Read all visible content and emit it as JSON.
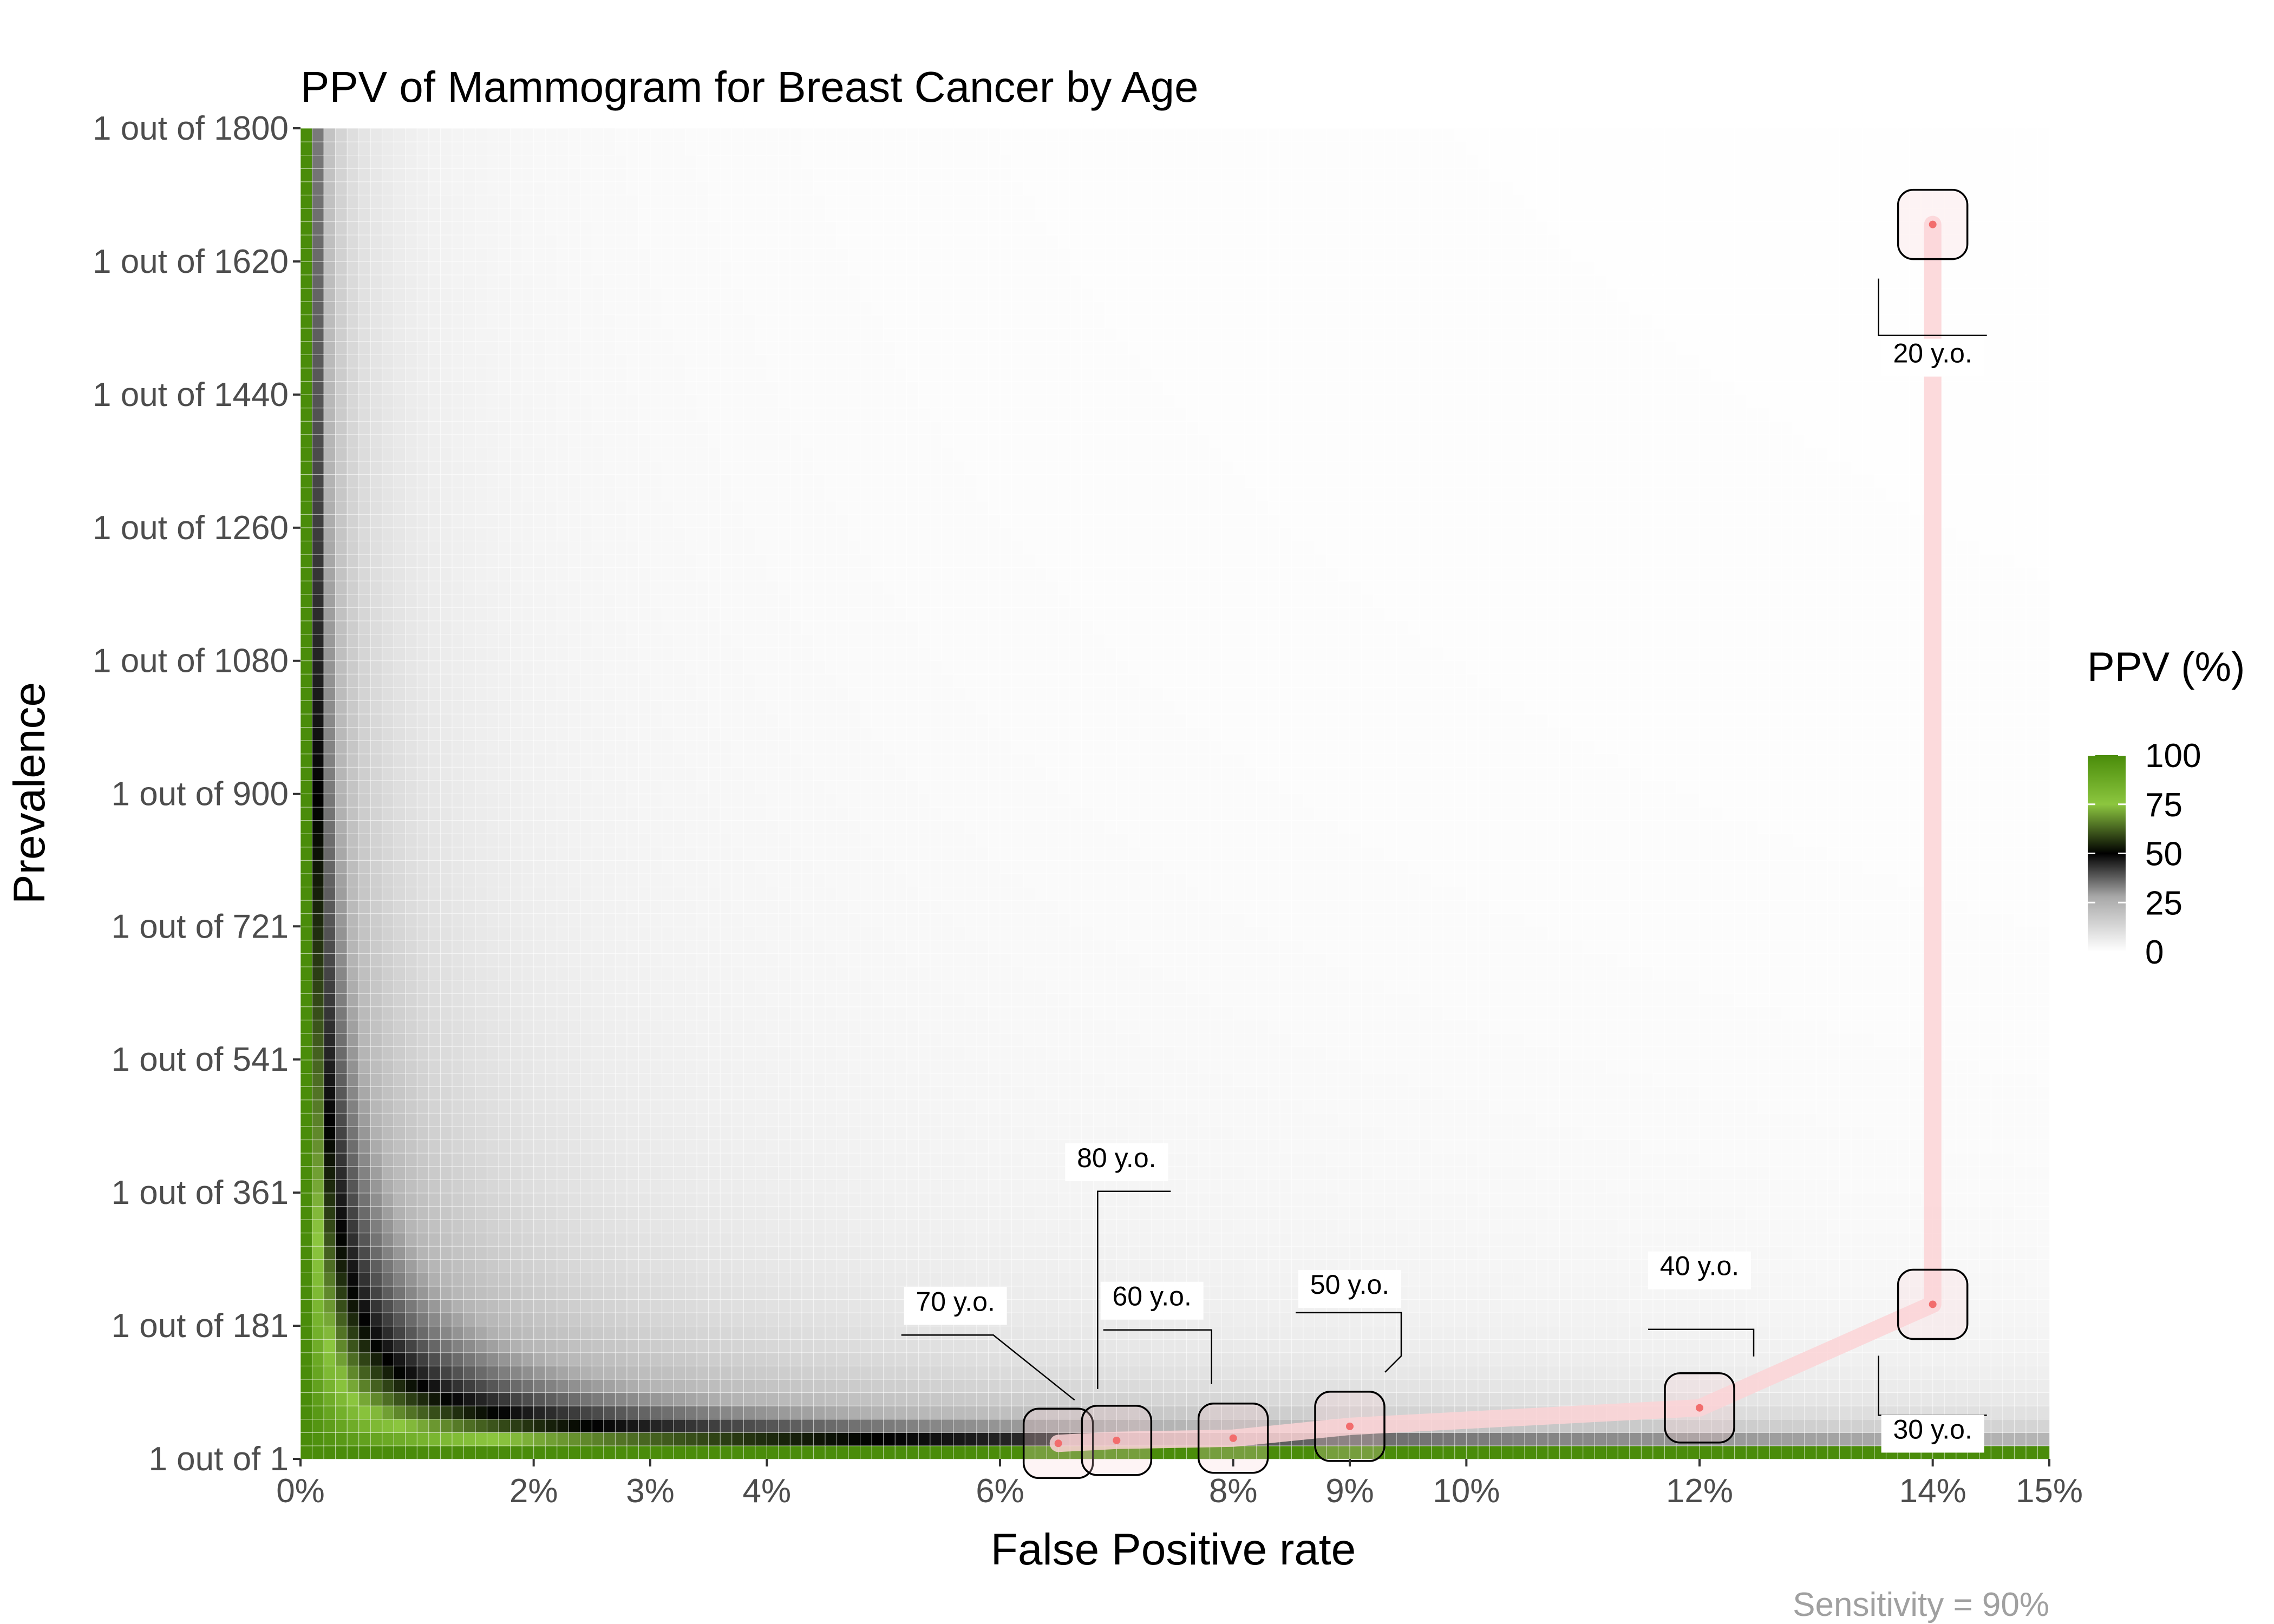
{
  "chart_data": {
    "type": "heatmap",
    "title": "PPV of Mammogram for Breast Cancer by Age",
    "xlabel": "False Positive rate",
    "ylabel": "Prevalence",
    "caption": "Sensitivity = 90%",
    "sensitivity": 0.9,
    "xlim": [
      0,
      15
    ],
    "ylim": [
      1,
      1800
    ],
    "x_ticks": [
      {
        "value": 0,
        "label": "0%"
      },
      {
        "value": 2,
        "label": "2%"
      },
      {
        "value": 3,
        "label": "3%"
      },
      {
        "value": 4,
        "label": "4%"
      },
      {
        "value": 6,
        "label": "6%"
      },
      {
        "value": 8,
        "label": "8%"
      },
      {
        "value": 9,
        "label": "9%"
      },
      {
        "value": 10,
        "label": "10%"
      },
      {
        "value": 12,
        "label": "12%"
      },
      {
        "value": 14,
        "label": "14%"
      },
      {
        "value": 15,
        "label": "15%"
      }
    ],
    "y_ticks": [
      {
        "value": 1,
        "label": "1 out of 1"
      },
      {
        "value": 181,
        "label": "1 out of 181"
      },
      {
        "value": 361,
        "label": "1 out of 361"
      },
      {
        "value": 541,
        "label": "1 out of 541"
      },
      {
        "value": 721,
        "label": "1 out of 721"
      },
      {
        "value": 900,
        "label": "1 out of 900"
      },
      {
        "value": 1080,
        "label": "1 out of 1080"
      },
      {
        "value": 1260,
        "label": "1 out of 1260"
      },
      {
        "value": 1440,
        "label": "1 out of 1440"
      },
      {
        "value": 1620,
        "label": "1 out of 1620"
      },
      {
        "value": 1800,
        "label": "1 out of 1800"
      }
    ],
    "legend": {
      "title": "PPV (%)",
      "ticks": [
        "100",
        "75",
        "50",
        "25",
        "0"
      ],
      "placement": "right"
    },
    "colors": {
      "ppv_high": "#4a8c0a",
      "ppv_mid_high": "#8cc63f",
      "ppv_mid": "#000000",
      "ppv_low": "#ffffff",
      "path": "#fcd4d6",
      "point": "#f26d6d",
      "caption": "#a0a0a0"
    },
    "age_points": [
      {
        "label": "20  y.o.",
        "fpr": 14,
        "prevalence": 1670
      },
      {
        "label": "30 y.o.",
        "fpr": 14,
        "prevalence": 210
      },
      {
        "label": "40 y.o.",
        "fpr": 12,
        "prevalence": 70
      },
      {
        "label": "50 y.o.",
        "fpr": 9,
        "prevalence": 45
      },
      {
        "label": "60 y.o.",
        "fpr": 8,
        "prevalence": 29
      },
      {
        "label": "70 y.o.",
        "fpr": 6.5,
        "prevalence": 22
      },
      {
        "label": "80 y.o.",
        "fpr": 7,
        "prevalence": 26
      }
    ]
  }
}
